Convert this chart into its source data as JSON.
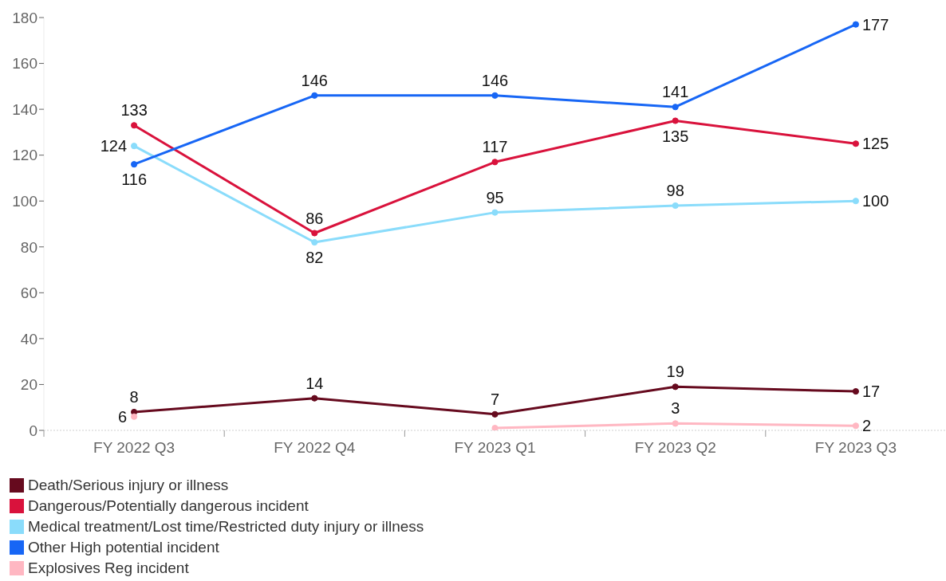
{
  "chart_data": {
    "type": "line",
    "categories": [
      "FY 2022 Q3",
      "FY 2022 Q4",
      "FY 2023 Q1",
      "FY 2023 Q2",
      "FY 2023 Q3"
    ],
    "series": [
      {
        "name": "Death/Serious injury or illness",
        "color": "#660a1e",
        "values": [
          8,
          14,
          7,
          19,
          17
        ],
        "value_labels": [
          "8",
          "14",
          "7",
          "19",
          "17"
        ]
      },
      {
        "name": "Dangerous/Potentially dangerous incident",
        "color": "#d9123c",
        "values": [
          133,
          86,
          117,
          135,
          125
        ],
        "value_labels": [
          "133",
          "86",
          "117",
          "135",
          "125"
        ]
      },
      {
        "name": "Medical treatment/Lost time/Restricted duty injury or illness",
        "color": "#8adcfb",
        "values": [
          124,
          82,
          95,
          98,
          100
        ],
        "value_labels": [
          "124",
          "82",
          "95",
          "98",
          "100"
        ]
      },
      {
        "name": "Other High potential incident",
        "color": "#1766f5",
        "values": [
          116,
          146,
          146,
          141,
          177
        ],
        "value_labels": [
          "116",
          "146",
          "146",
          "141",
          "177"
        ]
      },
      {
        "name": "Explosives Reg incident",
        "color": "#ffb7c2",
        "values": [
          6,
          null,
          1,
          3,
          2
        ],
        "value_labels": [
          "6",
          null,
          null,
          "3",
          "2"
        ]
      }
    ],
    "ylim": [
      0,
      180
    ],
    "yticks": [
      0,
      20,
      40,
      60,
      80,
      100,
      120,
      140,
      160,
      180
    ],
    "legend": "bottom",
    "marker": "circle",
    "line_style": "solid"
  }
}
